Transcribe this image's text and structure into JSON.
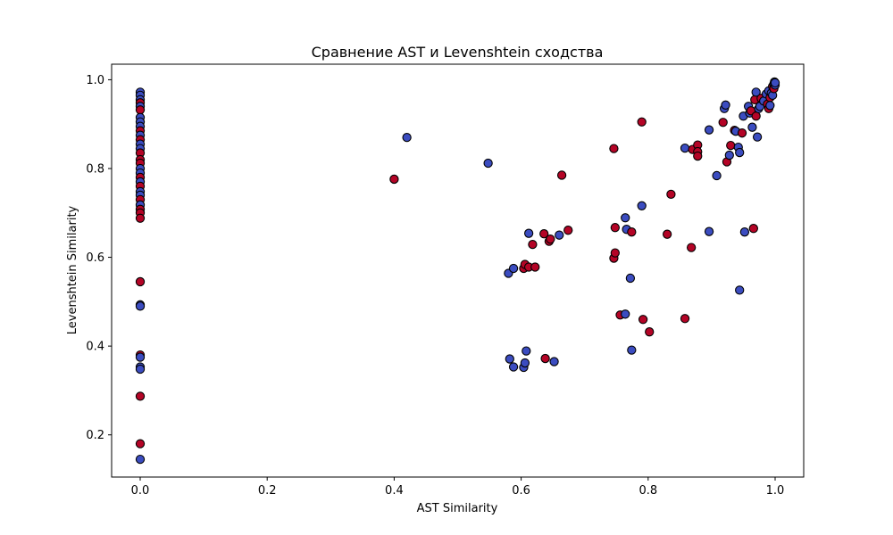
{
  "chart_data": {
    "type": "scatter",
    "title": "Сравнение AST и Levenshtein сходства",
    "xlabel": "AST Similarity",
    "ylabel": "Levenshtein Similarity",
    "xlim": [
      -0.045,
      1.045
    ],
    "ylim": [
      0.105,
      1.035
    ],
    "xticks": [
      0.0,
      0.2,
      0.4,
      0.6,
      0.8,
      1.0
    ],
    "yticks": [
      0.2,
      0.4,
      0.6,
      0.8,
      1.0
    ],
    "grid": false,
    "colors": {
      "red": "#b40426",
      "blue": "#3b4cc0",
      "edge": "#000000"
    },
    "points": [
      {
        "x": 0.0,
        "y": 0.972,
        "c": "blue"
      },
      {
        "x": 0.0,
        "y": 0.965,
        "c": "blue"
      },
      {
        "x": 0.0,
        "y": 0.955,
        "c": "blue"
      },
      {
        "x": 0.0,
        "y": 0.948,
        "c": "red"
      },
      {
        "x": 0.0,
        "y": 0.94,
        "c": "blue"
      },
      {
        "x": 0.0,
        "y": 0.932,
        "c": "red"
      },
      {
        "x": 0.0,
        "y": 0.915,
        "c": "blue"
      },
      {
        "x": 0.0,
        "y": 0.905,
        "c": "blue"
      },
      {
        "x": 0.0,
        "y": 0.895,
        "c": "blue"
      },
      {
        "x": 0.0,
        "y": 0.885,
        "c": "red"
      },
      {
        "x": 0.0,
        "y": 0.875,
        "c": "blue"
      },
      {
        "x": 0.0,
        "y": 0.865,
        "c": "red"
      },
      {
        "x": 0.0,
        "y": 0.855,
        "c": "blue"
      },
      {
        "x": 0.0,
        "y": 0.845,
        "c": "blue"
      },
      {
        "x": 0.0,
        "y": 0.835,
        "c": "red"
      },
      {
        "x": 0.0,
        "y": 0.82,
        "c": "red"
      },
      {
        "x": 0.0,
        "y": 0.812,
        "c": "red"
      },
      {
        "x": 0.0,
        "y": 0.8,
        "c": "blue"
      },
      {
        "x": 0.0,
        "y": 0.79,
        "c": "blue"
      },
      {
        "x": 0.0,
        "y": 0.78,
        "c": "red"
      },
      {
        "x": 0.0,
        "y": 0.77,
        "c": "blue"
      },
      {
        "x": 0.0,
        "y": 0.76,
        "c": "red"
      },
      {
        "x": 0.0,
        "y": 0.748,
        "c": "blue"
      },
      {
        "x": 0.0,
        "y": 0.74,
        "c": "blue"
      },
      {
        "x": 0.0,
        "y": 0.73,
        "c": "red"
      },
      {
        "x": 0.0,
        "y": 0.718,
        "c": "blue"
      },
      {
        "x": 0.0,
        "y": 0.708,
        "c": "red"
      },
      {
        "x": 0.0,
        "y": 0.7,
        "c": "red"
      },
      {
        "x": 0.0,
        "y": 0.688,
        "c": "red"
      },
      {
        "x": 0.0,
        "y": 0.545,
        "c": "red"
      },
      {
        "x": 0.0,
        "y": 0.493,
        "c": "blue"
      },
      {
        "x": 0.0,
        "y": 0.49,
        "c": "blue"
      },
      {
        "x": 0.0,
        "y": 0.38,
        "c": "red"
      },
      {
        "x": 0.0,
        "y": 0.375,
        "c": "blue"
      },
      {
        "x": 0.0,
        "y": 0.353,
        "c": "blue"
      },
      {
        "x": 0.0,
        "y": 0.348,
        "c": "blue"
      },
      {
        "x": 0.0,
        "y": 0.287,
        "c": "red"
      },
      {
        "x": 0.0,
        "y": 0.18,
        "c": "red"
      },
      {
        "x": 0.0,
        "y": 0.145,
        "c": "blue"
      },
      {
        "x": 0.4,
        "y": 0.776,
        "c": "red"
      },
      {
        "x": 0.42,
        "y": 0.87,
        "c": "blue"
      },
      {
        "x": 0.548,
        "y": 0.812,
        "c": "blue"
      },
      {
        "x": 0.58,
        "y": 0.564,
        "c": "blue"
      },
      {
        "x": 0.588,
        "y": 0.575,
        "c": "blue"
      },
      {
        "x": 0.604,
        "y": 0.575,
        "c": "red"
      },
      {
        "x": 0.606,
        "y": 0.584,
        "c": "red"
      },
      {
        "x": 0.612,
        "y": 0.578,
        "c": "red"
      },
      {
        "x": 0.622,
        "y": 0.578,
        "c": "red"
      },
      {
        "x": 0.612,
        "y": 0.654,
        "c": "blue"
      },
      {
        "x": 0.618,
        "y": 0.629,
        "c": "red"
      },
      {
        "x": 0.636,
        "y": 0.653,
        "c": "red"
      },
      {
        "x": 0.644,
        "y": 0.636,
        "c": "red"
      },
      {
        "x": 0.646,
        "y": 0.641,
        "c": "red"
      },
      {
        "x": 0.66,
        "y": 0.65,
        "c": "blue"
      },
      {
        "x": 0.674,
        "y": 0.661,
        "c": "red"
      },
      {
        "x": 0.664,
        "y": 0.785,
        "c": "red"
      },
      {
        "x": 0.582,
        "y": 0.371,
        "c": "blue"
      },
      {
        "x": 0.588,
        "y": 0.353,
        "c": "blue"
      },
      {
        "x": 0.604,
        "y": 0.352,
        "c": "blue"
      },
      {
        "x": 0.606,
        "y": 0.362,
        "c": "blue"
      },
      {
        "x": 0.608,
        "y": 0.389,
        "c": "blue"
      },
      {
        "x": 0.638,
        "y": 0.372,
        "c": "red"
      },
      {
        "x": 0.652,
        "y": 0.365,
        "c": "blue"
      },
      {
        "x": 0.746,
        "y": 0.845,
        "c": "red"
      },
      {
        "x": 0.746,
        "y": 0.598,
        "c": "red"
      },
      {
        "x": 0.748,
        "y": 0.61,
        "c": "red"
      },
      {
        "x": 0.748,
        "y": 0.667,
        "c": "red"
      },
      {
        "x": 0.764,
        "y": 0.689,
        "c": "blue"
      },
      {
        "x": 0.766,
        "y": 0.663,
        "c": "blue"
      },
      {
        "x": 0.774,
        "y": 0.657,
        "c": "red"
      },
      {
        "x": 0.772,
        "y": 0.553,
        "c": "blue"
      },
      {
        "x": 0.756,
        "y": 0.47,
        "c": "red"
      },
      {
        "x": 0.764,
        "y": 0.472,
        "c": "blue"
      },
      {
        "x": 0.774,
        "y": 0.391,
        "c": "blue"
      },
      {
        "x": 0.79,
        "y": 0.716,
        "c": "blue"
      },
      {
        "x": 0.79,
        "y": 0.905,
        "c": "red"
      },
      {
        "x": 0.792,
        "y": 0.46,
        "c": "red"
      },
      {
        "x": 0.802,
        "y": 0.432,
        "c": "red"
      },
      {
        "x": 0.83,
        "y": 0.652,
        "c": "red"
      },
      {
        "x": 0.836,
        "y": 0.742,
        "c": "red"
      },
      {
        "x": 0.858,
        "y": 0.846,
        "c": "blue"
      },
      {
        "x": 0.858,
        "y": 0.462,
        "c": "red"
      },
      {
        "x": 0.868,
        "y": 0.622,
        "c": "red"
      },
      {
        "x": 0.87,
        "y": 0.843,
        "c": "red"
      },
      {
        "x": 0.878,
        "y": 0.853,
        "c": "red"
      },
      {
        "x": 0.878,
        "y": 0.838,
        "c": "red"
      },
      {
        "x": 0.878,
        "y": 0.828,
        "c": "red"
      },
      {
        "x": 0.896,
        "y": 0.887,
        "c": "blue"
      },
      {
        "x": 0.896,
        "y": 0.658,
        "c": "blue"
      },
      {
        "x": 0.908,
        "y": 0.784,
        "c": "blue"
      },
      {
        "x": 0.918,
        "y": 0.904,
        "c": "red"
      },
      {
        "x": 0.92,
        "y": 0.935,
        "c": "blue"
      },
      {
        "x": 0.922,
        "y": 0.943,
        "c": "blue"
      },
      {
        "x": 0.924,
        "y": 0.815,
        "c": "red"
      },
      {
        "x": 0.928,
        "y": 0.83,
        "c": "blue"
      },
      {
        "x": 0.93,
        "y": 0.852,
        "c": "red"
      },
      {
        "x": 0.936,
        "y": 0.886,
        "c": "red"
      },
      {
        "x": 0.938,
        "y": 0.884,
        "c": "blue"
      },
      {
        "x": 0.942,
        "y": 0.848,
        "c": "blue"
      },
      {
        "x": 0.944,
        "y": 0.836,
        "c": "blue"
      },
      {
        "x": 0.944,
        "y": 0.526,
        "c": "blue"
      },
      {
        "x": 0.948,
        "y": 0.88,
        "c": "red"
      },
      {
        "x": 0.95,
        "y": 0.918,
        "c": "blue"
      },
      {
        "x": 0.952,
        "y": 0.657,
        "c": "blue"
      },
      {
        "x": 0.958,
        "y": 0.94,
        "c": "blue"
      },
      {
        "x": 0.96,
        "y": 0.925,
        "c": "blue"
      },
      {
        "x": 0.962,
        "y": 0.93,
        "c": "red"
      },
      {
        "x": 0.964,
        "y": 0.893,
        "c": "blue"
      },
      {
        "x": 0.966,
        "y": 0.665,
        "c": "red"
      },
      {
        "x": 0.968,
        "y": 0.955,
        "c": "red"
      },
      {
        "x": 0.97,
        "y": 0.972,
        "c": "blue"
      },
      {
        "x": 0.97,
        "y": 0.918,
        "c": "red"
      },
      {
        "x": 0.972,
        "y": 0.871,
        "c": "blue"
      },
      {
        "x": 0.974,
        "y": 0.935,
        "c": "blue"
      },
      {
        "x": 0.976,
        "y": 0.94,
        "c": "blue"
      },
      {
        "x": 0.978,
        "y": 0.958,
        "c": "red"
      },
      {
        "x": 0.982,
        "y": 0.952,
        "c": "blue"
      },
      {
        "x": 0.986,
        "y": 0.968,
        "c": "blue"
      },
      {
        "x": 0.988,
        "y": 0.945,
        "c": "red"
      },
      {
        "x": 0.99,
        "y": 0.935,
        "c": "red"
      },
      {
        "x": 0.99,
        "y": 0.975,
        "c": "blue"
      },
      {
        "x": 0.992,
        "y": 0.96,
        "c": "red"
      },
      {
        "x": 0.992,
        "y": 0.942,
        "c": "blue"
      },
      {
        "x": 0.994,
        "y": 0.97,
        "c": "blue"
      },
      {
        "x": 0.996,
        "y": 0.965,
        "c": "blue"
      },
      {
        "x": 0.996,
        "y": 0.985,
        "c": "red"
      },
      {
        "x": 0.998,
        "y": 0.99,
        "c": "blue"
      },
      {
        "x": 0.998,
        "y": 0.98,
        "c": "red"
      },
      {
        "x": 0.999,
        "y": 0.995,
        "c": "blue"
      },
      {
        "x": 1.0,
        "y": 0.988,
        "c": "blue"
      },
      {
        "x": 1.0,
        "y": 0.993,
        "c": "blue"
      }
    ]
  }
}
